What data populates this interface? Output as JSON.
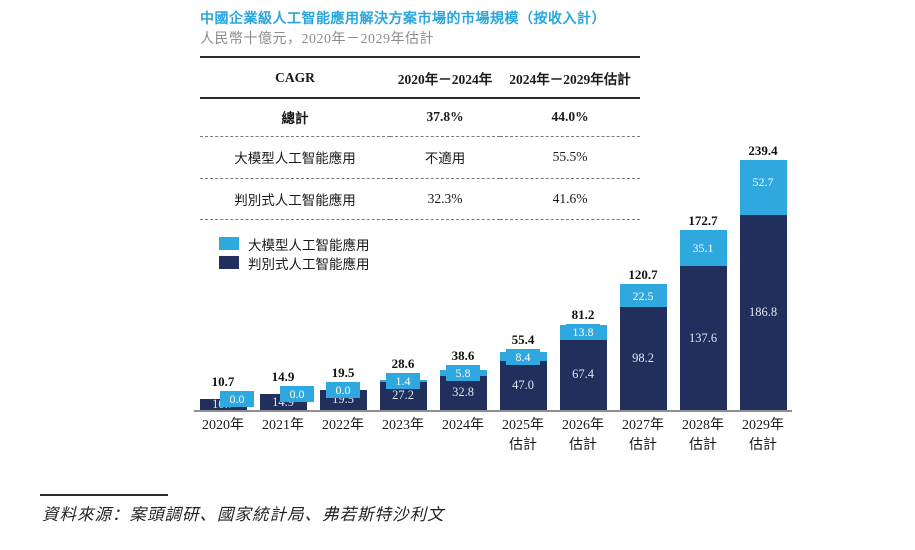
{
  "header": {
    "title": "中國企業級人工智能應用解決方案市場的市場規模（按收入計）",
    "subtitle": "人民幣十億元，2020年－2029年估計"
  },
  "cagr_table": {
    "columns": [
      "CAGR",
      "2020年－2024年",
      "2024年－2029年估計"
    ],
    "rows": [
      {
        "label": "總計",
        "v1": "37.8%",
        "v2": "44.0%"
      },
      {
        "label": "大模型人工智能應用",
        "v1": "不適用",
        "v2": "55.5%"
      },
      {
        "label": "判別式人工智能應用",
        "v1": "32.3%",
        "v2": "41.6%"
      }
    ]
  },
  "legend": [
    {
      "label": "大模型人工智能應用",
      "color": "#2FA8DF"
    },
    {
      "label": "判別式人工智能應用",
      "color": "#212F5C"
    }
  ],
  "chart_data": {
    "type": "bar",
    "stacked": true,
    "title": "中國企業級人工智能應用解決方案市場的市場規模（按收入計）",
    "unit": "人民幣十億元",
    "xlabel": "",
    "ylabel": "人民幣十億元",
    "ylim": [
      0,
      250
    ],
    "grid": false,
    "legend_position": "top-left",
    "categories": [
      {
        "label": "2020年",
        "sub": ""
      },
      {
        "label": "2021年",
        "sub": ""
      },
      {
        "label": "2022年",
        "sub": ""
      },
      {
        "label": "2023年",
        "sub": ""
      },
      {
        "label": "2024年",
        "sub": ""
      },
      {
        "label": "2025年",
        "sub": "估計"
      },
      {
        "label": "2026年",
        "sub": "估計"
      },
      {
        "label": "2027年",
        "sub": "估計"
      },
      {
        "label": "2028年",
        "sub": "估計"
      },
      {
        "label": "2029年",
        "sub": "估計"
      }
    ],
    "series": [
      {
        "name": "判別式人工智能應用",
        "color": "#212F5C",
        "values": [
          10.7,
          14.9,
          19.5,
          27.2,
          32.8,
          47.0,
          67.4,
          98.2,
          137.6,
          186.8
        ]
      },
      {
        "name": "大模型人工智能應用",
        "color": "#2FA8DF",
        "values": [
          0.0,
          0.0,
          0.0,
          1.4,
          5.8,
          8.4,
          13.8,
          22.5,
          35.1,
          52.7
        ]
      }
    ],
    "totals": [
      10.7,
      14.9,
      19.5,
      28.6,
      38.6,
      55.4,
      81.2,
      120.7,
      172.7,
      239.4
    ]
  },
  "footer": {
    "source": "資料來源：案頭調研、國家統計局、弗若斯特沙利文"
  },
  "colors": {
    "title_blue": "#2BA6DC",
    "subtitle_gray": "#8c8c8c",
    "large_model_blue": "#2FA8DF",
    "discriminative_navy": "#212F5C",
    "axis_line_gray": "#8f8f8f"
  }
}
